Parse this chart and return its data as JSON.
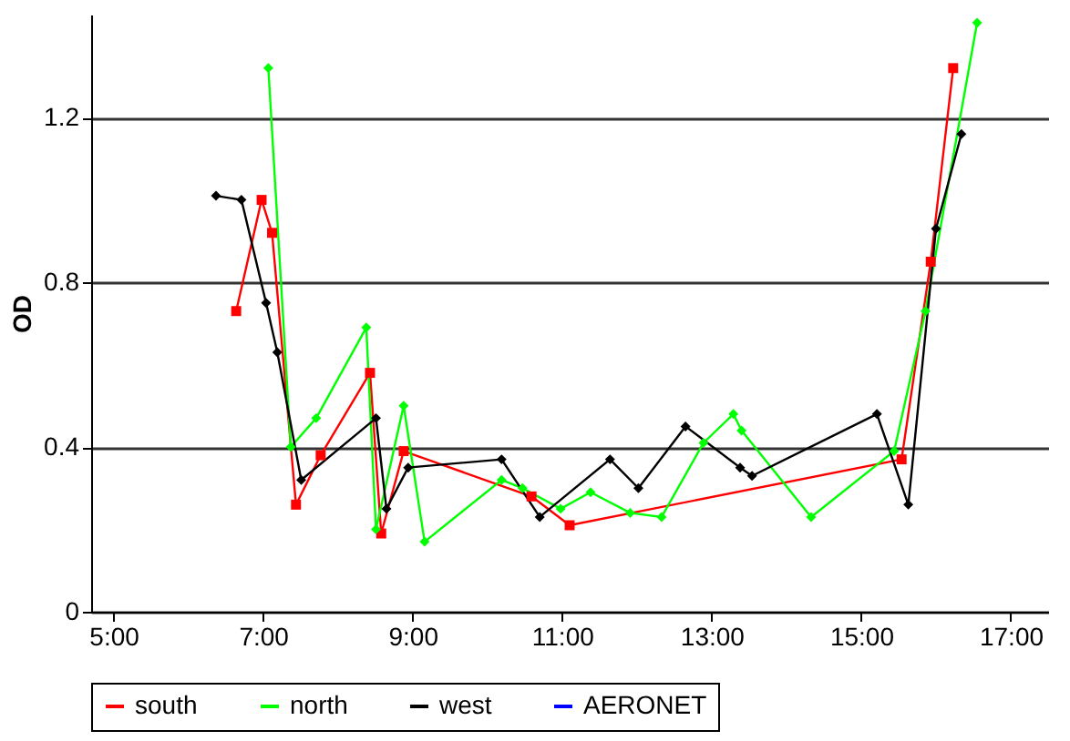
{
  "chart_data": {
    "type": "line",
    "ylabel": "OD",
    "xlim": [
      4.7,
      17.5
    ],
    "ylim": [
      0,
      1.45
    ],
    "yticks": [
      0,
      0.4,
      0.8,
      1.2
    ],
    "xticks": [
      {
        "value": 5,
        "label": "5:00"
      },
      {
        "value": 7,
        "label": "7:00"
      },
      {
        "value": 9,
        "label": "9:00"
      },
      {
        "value": 11,
        "label": "11:00"
      },
      {
        "value": 13,
        "label": "13:00"
      },
      {
        "value": 15,
        "label": "15:00"
      },
      {
        "value": 17,
        "label": "17:00"
      }
    ],
    "grid": "y",
    "legend": "bottom",
    "series": [
      {
        "name": "south",
        "color": "#ff0000",
        "marker": "square",
        "x": [
          6.64,
          6.98,
          7.12,
          7.44,
          7.77,
          8.43,
          8.58,
          8.88,
          10.59,
          11.1,
          15.54,
          15.93,
          16.23
        ],
        "values": [
          0.73,
          1.0,
          0.92,
          0.26,
          0.38,
          0.58,
          0.19,
          0.39,
          0.28,
          0.21,
          0.37,
          0.85,
          1.32
        ]
      },
      {
        "name": "north",
        "color": "#00ff00",
        "marker": "diamond",
        "x": [
          7.07,
          7.37,
          7.71,
          8.38,
          8.51,
          8.88,
          9.16,
          10.19,
          10.47,
          10.98,
          11.38,
          11.91,
          12.33,
          12.89,
          13.29,
          13.4,
          14.33,
          15.44,
          15.86,
          16.55
        ],
        "values": [
          1.32,
          0.4,
          0.47,
          0.69,
          0.2,
          0.5,
          0.17,
          0.32,
          0.3,
          0.25,
          0.29,
          0.24,
          0.23,
          0.41,
          0.48,
          0.44,
          0.23,
          0.39,
          0.73,
          1.43
        ]
      },
      {
        "name": "west",
        "color": "#000000",
        "marker": "diamond",
        "x": [
          6.37,
          6.71,
          7.04,
          7.19,
          7.51,
          8.51,
          8.65,
          8.94,
          10.19,
          10.7,
          11.64,
          12.02,
          12.65,
          13.38,
          13.54,
          15.21,
          15.63,
          16.0,
          16.34
        ],
        "values": [
          1.01,
          1.0,
          0.75,
          0.63,
          0.32,
          0.47,
          0.25,
          0.35,
          0.37,
          0.23,
          0.37,
          0.3,
          0.45,
          0.35,
          0.33,
          0.48,
          0.26,
          0.93,
          1.16
        ]
      },
      {
        "name": "AERONET",
        "color": "#0000ff"
      }
    ]
  }
}
